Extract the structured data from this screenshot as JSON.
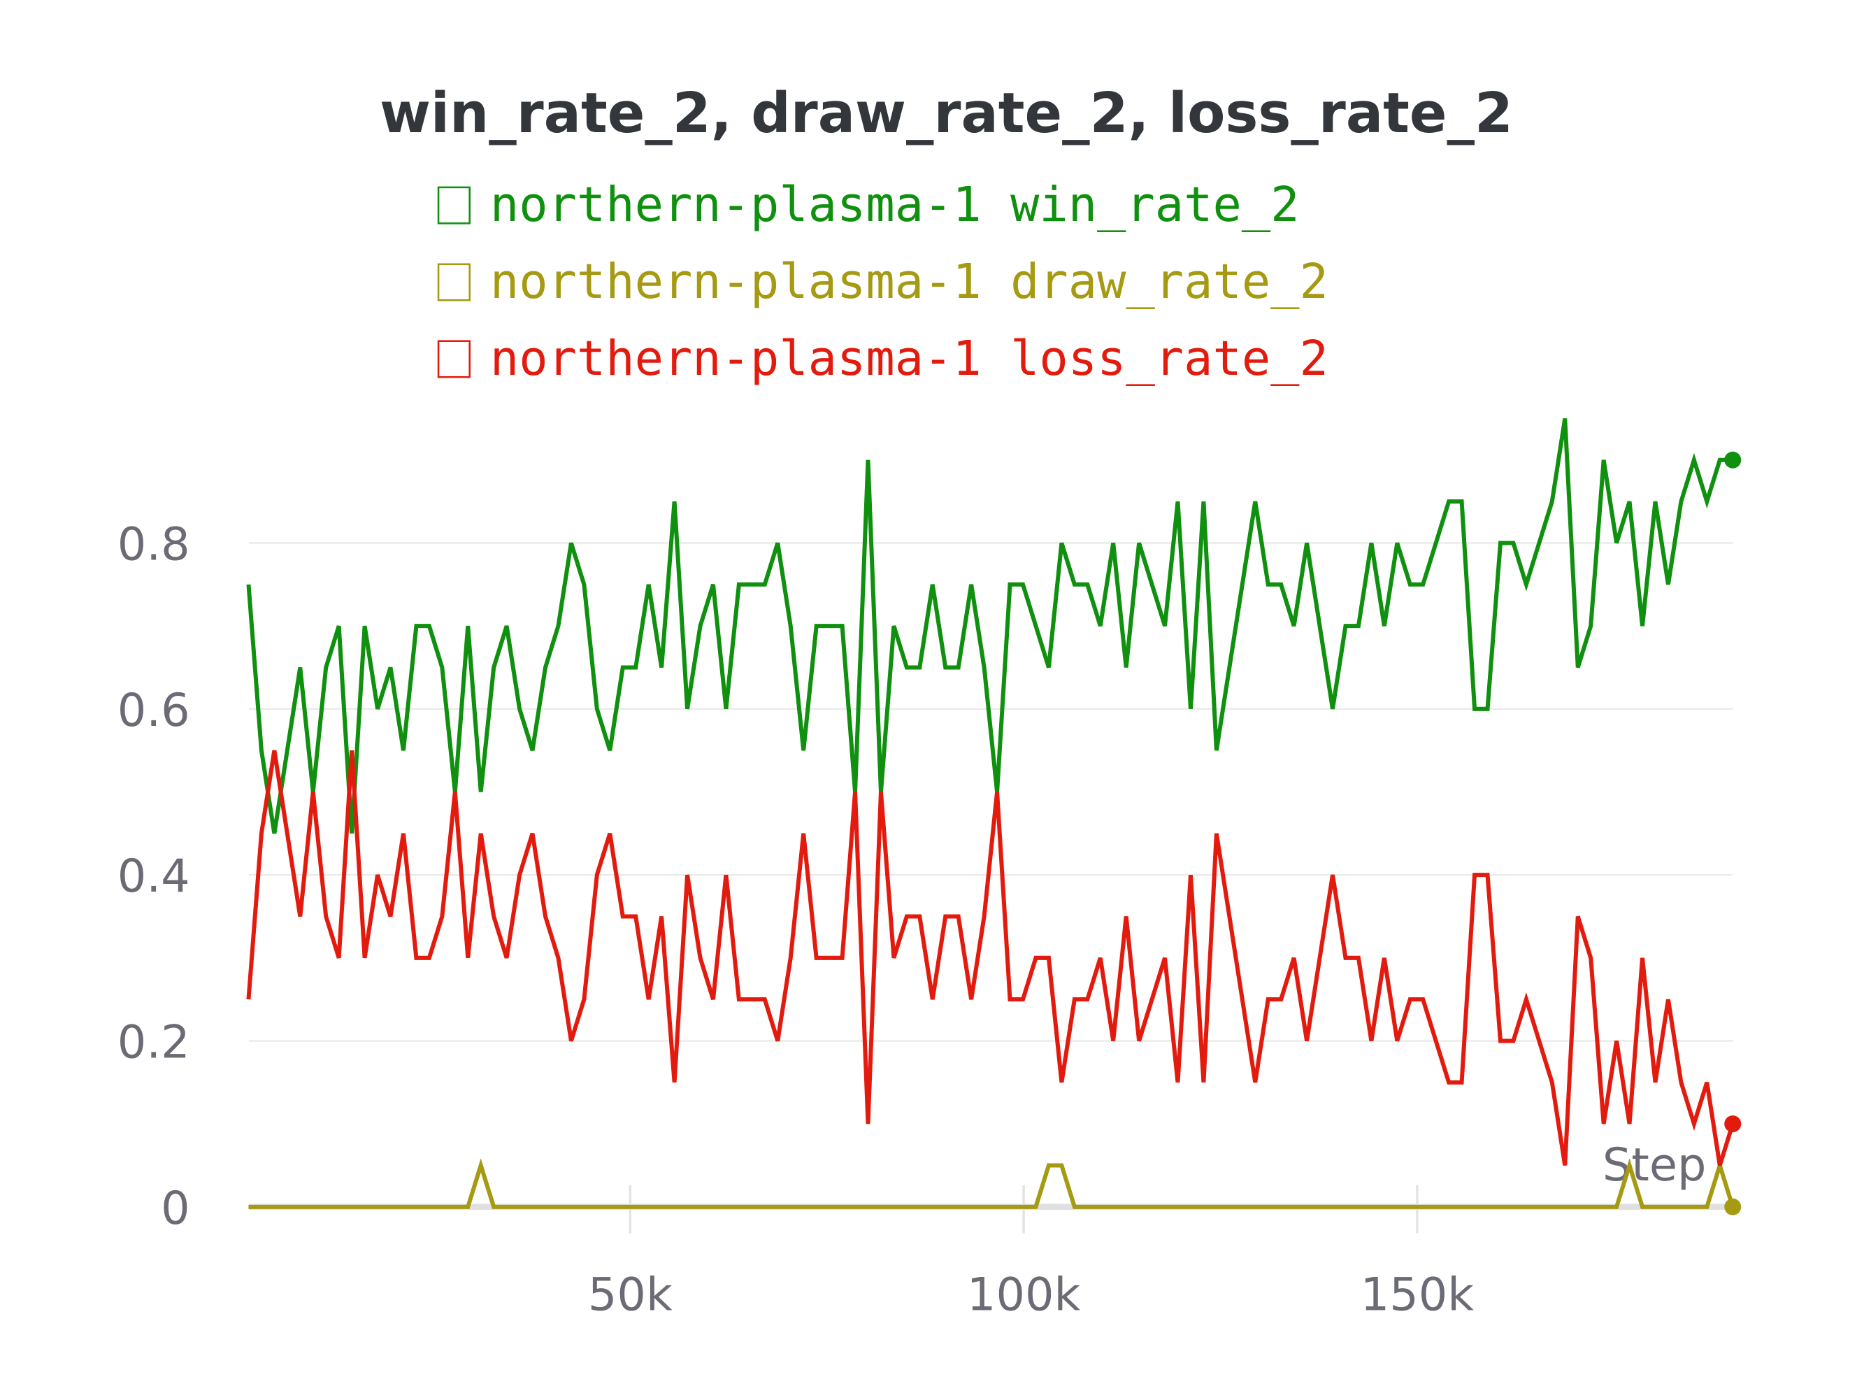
{
  "chart_data": {
    "type": "line",
    "title": "win_rate_2, draw_rate_2, loss_rate_2",
    "xlabel": "Step",
    "x": [
      1500,
      3140,
      4780,
      6420,
      8060,
      9700,
      11340,
      12980,
      14620,
      16260,
      17900,
      19540,
      21180,
      22820,
      24460,
      26100,
      27740,
      29380,
      31020,
      32660,
      34300,
      35940,
      37580,
      39220,
      40860,
      42500,
      44140,
      45780,
      47420,
      49060,
      50700,
      52340,
      53980,
      55620,
      57260,
      58900,
      60540,
      62180,
      63820,
      65460,
      67100,
      68740,
      70380,
      72020,
      73660,
      75300,
      76940,
      78580,
      80220,
      81860,
      83500,
      85140,
      86780,
      88420,
      90060,
      91700,
      93340,
      94980,
      96620,
      98260,
      99900,
      101540,
      103180,
      104820,
      106460,
      108100,
      109740,
      111380,
      113020,
      114660,
      116300,
      117940,
      119580,
      121220,
      122860,
      124500,
      126140,
      127780,
      129420,
      131060,
      132700,
      134340,
      135980,
      137620,
      139260,
      140900,
      142540,
      144180,
      145820,
      147460,
      149100,
      150740,
      152380,
      154020,
      155660,
      157300,
      158940,
      160580,
      162220,
      163860,
      165500,
      167140,
      168780,
      170420,
      172060,
      173700,
      175340,
      176980,
      178620,
      180260,
      181900,
      183540,
      185180,
      186820,
      188460,
      190100
    ],
    "series": [
      {
        "name": "northern-plasma-1 win_rate_2",
        "color": "#10900f",
        "values": [
          0.75,
          0.55,
          0.45,
          0.55,
          0.65,
          0.5,
          0.65,
          0.7,
          0.45,
          0.7,
          0.6,
          0.65,
          0.55,
          0.7,
          0.7,
          0.65,
          0.5,
          0.7,
          0.5,
          0.65,
          0.7,
          0.6,
          0.55,
          0.65,
          0.7,
          0.8,
          0.75,
          0.6,
          0.55,
          0.65,
          0.65,
          0.75,
          0.65,
          0.85,
          0.6,
          0.7,
          0.75,
          0.6,
          0.75,
          0.75,
          0.75,
          0.8,
          0.7,
          0.55,
          0.7,
          0.7,
          0.7,
          0.5,
          0.9,
          0.5,
          0.7,
          0.65,
          0.65,
          0.75,
          0.65,
          0.65,
          0.75,
          0.65,
          0.5,
          0.75,
          0.75,
          0.7,
          0.65,
          0.8,
          0.75,
          0.75,
          0.7,
          0.8,
          0.65,
          0.8,
          0.75,
          0.7,
          0.85,
          0.6,
          0.85,
          0.55,
          0.65,
          0.75,
          0.85,
          0.75,
          0.75,
          0.7,
          0.8,
          0.7,
          0.6,
          0.7,
          0.7,
          0.8,
          0.7,
          0.8,
          0.75,
          0.75,
          0.8,
          0.85,
          0.85,
          0.6,
          0.6,
          0.8,
          0.8,
          0.75,
          0.8,
          0.85,
          0.95,
          0.65,
          0.7,
          0.9,
          0.8,
          0.85,
          0.7,
          0.85,
          0.75,
          0.85,
          0.9,
          0.85,
          0.9,
          0.9
        ]
      },
      {
        "name": "northern-plasma-1 draw_rate_2",
        "color": "#a59a12",
        "values": [
          0,
          0,
          0,
          0,
          0,
          0,
          0,
          0,
          0,
          0,
          0,
          0,
          0,
          0,
          0,
          0,
          0,
          0,
          0.05,
          0,
          0,
          0,
          0,
          0,
          0,
          0,
          0,
          0,
          0,
          0,
          0,
          0,
          0,
          0,
          0,
          0,
          0,
          0,
          0,
          0,
          0,
          0,
          0,
          0,
          0,
          0,
          0,
          0,
          0,
          0,
          0,
          0,
          0,
          0,
          0,
          0,
          0,
          0,
          0,
          0,
          0,
          0,
          0.05,
          0.05,
          0,
          0,
          0,
          0,
          0,
          0,
          0,
          0,
          0,
          0,
          0,
          0,
          0,
          0,
          0,
          0,
          0,
          0,
          0,
          0,
          0,
          0,
          0,
          0,
          0,
          0,
          0,
          0,
          0,
          0,
          0,
          0,
          0,
          0,
          0,
          0,
          0,
          0,
          0,
          0,
          0,
          0,
          0,
          0.05,
          0,
          0,
          0,
          0,
          0,
          0,
          0.05,
          0
        ]
      },
      {
        "name": "northern-plasma-1 loss_rate_2",
        "color": "#e31b0f",
        "values": [
          0.25,
          0.45,
          0.55,
          0.45,
          0.35,
          0.5,
          0.35,
          0.3,
          0.55,
          0.3,
          0.4,
          0.35,
          0.45,
          0.3,
          0.3,
          0.35,
          0.5,
          0.3,
          0.45,
          0.35,
          0.3,
          0.4,
          0.45,
          0.35,
          0.3,
          0.2,
          0.25,
          0.4,
          0.45,
          0.35,
          0.35,
          0.25,
          0.35,
          0.15,
          0.4,
          0.3,
          0.25,
          0.4,
          0.25,
          0.25,
          0.25,
          0.2,
          0.3,
          0.45,
          0.3,
          0.3,
          0.3,
          0.5,
          0.1,
          0.5,
          0.3,
          0.35,
          0.35,
          0.25,
          0.35,
          0.35,
          0.25,
          0.35,
          0.5,
          0.25,
          0.25,
          0.3,
          0.3,
          0.15,
          0.25,
          0.25,
          0.3,
          0.2,
          0.35,
          0.2,
          0.25,
          0.3,
          0.15,
          0.4,
          0.15,
          0.45,
          0.35,
          0.25,
          0.15,
          0.25,
          0.25,
          0.3,
          0.2,
          0.3,
          0.4,
          0.3,
          0.3,
          0.2,
          0.3,
          0.2,
          0.25,
          0.25,
          0.2,
          0.15,
          0.15,
          0.4,
          0.4,
          0.2,
          0.2,
          0.25,
          0.2,
          0.15,
          0.05,
          0.35,
          0.3,
          0.1,
          0.2,
          0.1,
          0.3,
          0.15,
          0.25,
          0.15,
          0.1,
          0.15,
          0.05,
          0.1
        ]
      }
    ],
    "xlim": [
      0,
      190100
    ],
    "xticks": [
      {
        "value": 50000,
        "label": "50k"
      },
      {
        "value": 100000,
        "label": "100k"
      },
      {
        "value": 150000,
        "label": "150k"
      }
    ],
    "ylim": [
      0,
      0.95
    ],
    "yticks": [
      0,
      0.2,
      0.4,
      0.6,
      0.8
    ],
    "grid": true
  }
}
